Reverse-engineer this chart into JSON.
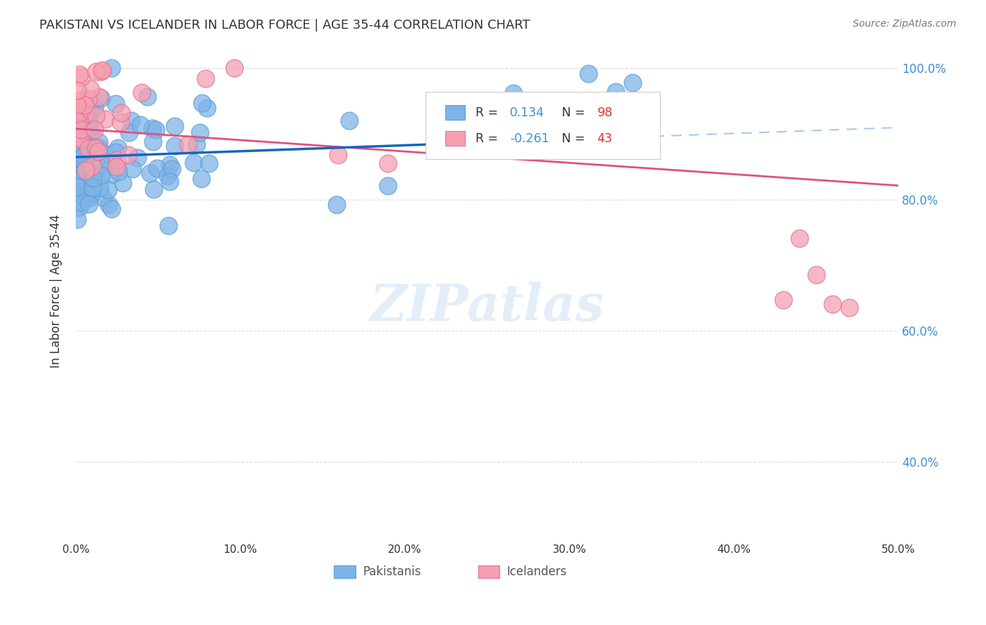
{
  "title": "PAKISTANI VS ICELANDER IN LABOR FORCE | AGE 35-44 CORRELATION CHART",
  "source": "Source: ZipAtlas.com",
  "xlim": [
    0.0,
    0.5
  ],
  "ylim": [
    0.28,
    1.04
  ],
  "pakistani_color": "#7fb3e8",
  "icelander_color": "#f4a0b0",
  "pakistani_edge": "#5a9fd4",
  "icelander_edge": "#e87090",
  "R_pakistani": 0.134,
  "N_pakistani": 98,
  "R_icelander": -0.261,
  "N_icelander": 43,
  "watermark": "ZIPatlas",
  "ylabel": "In Labor Force | Age 35-44",
  "legend_label1": "Pakistanis",
  "legend_label2": "Icelanders",
  "trend_line_color_solid": "#1565c0",
  "trend_line_color_dashed": "#7fb3e8",
  "icelander_line_color": "#e05080",
  "xtick_vals": [
    0.0,
    0.1,
    0.2,
    0.3,
    0.4,
    0.5
  ],
  "xtick_labels": [
    "0.0%",
    "10.0%",
    "20.0%",
    "30.0%",
    "40.0%",
    "50.0%"
  ],
  "ytick_vals": [
    0.4,
    0.6,
    0.8,
    1.0
  ],
  "ytick_labels": [
    "40.0%",
    "60.0%",
    "80.0%",
    "100.0%"
  ]
}
